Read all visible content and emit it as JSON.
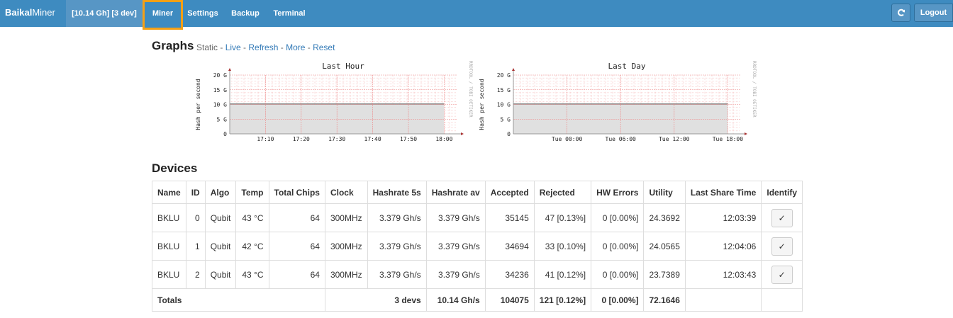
{
  "navbar": {
    "brand_bold": "Baikal",
    "brand_light": "Miner",
    "status": "[10.14 Gh] [3 dev]",
    "tabs": [
      "Miner",
      "Settings",
      "Backup",
      "Terminal"
    ],
    "active_tab": "Miner",
    "refresh_icon": "refresh-icon",
    "logout_label": "Logout"
  },
  "graphs_section": {
    "heading": "Graphs",
    "links": {
      "static": "Static",
      "live": "Live",
      "refresh": "Refresh",
      "more": "More",
      "reset": "Reset"
    }
  },
  "chart_data": [
    {
      "type": "area",
      "title": "Last Hour",
      "ylabel": "Hash per second",
      "side_label": "RRDTOOL / TOBI OETIKER",
      "y_ticks": [
        "0",
        "5 G",
        "10 G",
        "15 G",
        "20 G"
      ],
      "ylim": [
        0,
        20
      ],
      "x_ticks": [
        "17:10",
        "17:20",
        "17:30",
        "17:40",
        "17:50",
        "18:00"
      ],
      "x": [
        "17:00",
        "18:00"
      ],
      "values": [
        10.14,
        10.14
      ],
      "colors": {
        "fill": "#e0e0e0",
        "line": "#444444",
        "grid": "#f4b4b4",
        "axis": "#999999"
      }
    },
    {
      "type": "area",
      "title": "Last Day",
      "ylabel": "Hash per second",
      "side_label": "RRDTOOL / TOBI OETIKER",
      "y_ticks": [
        "0",
        "5 G",
        "10 G",
        "15 G",
        "20 G"
      ],
      "ylim": [
        0,
        20
      ],
      "x_ticks": [
        "Tue 00:00",
        "Tue 06:00",
        "Tue 12:00",
        "Tue 18:00"
      ],
      "x": [
        "Mon 18:00",
        "Tue 18:00"
      ],
      "values": [
        10.14,
        10.14
      ],
      "colors": {
        "fill": "#e0e0e0",
        "line": "#444444",
        "grid": "#f4b4b4",
        "axis": "#999999"
      }
    }
  ],
  "devices_section": {
    "heading": "Devices",
    "columns": [
      "Name",
      "ID",
      "Algo",
      "Temp",
      "Total Chips",
      "Clock",
      "Hashrate 5s",
      "Hashrate av",
      "Accepted",
      "Rejected",
      "HW Errors",
      "Utility",
      "Last Share Time",
      "Identify"
    ],
    "rows": [
      [
        "BKLU",
        "0",
        "Qubit",
        "43 °C",
        "64",
        "300MHz",
        "3.379 Gh/s",
        "3.379 Gh/s",
        "35145",
        "47 [0.13%]",
        "0 [0.00%]",
        "24.3692",
        "12:03:39"
      ],
      [
        "BKLU",
        "1",
        "Qubit",
        "42 °C",
        "64",
        "300MHz",
        "3.379 Gh/s",
        "3.379 Gh/s",
        "34694",
        "33 [0.10%]",
        "0 [0.00%]",
        "24.0565",
        "12:04:06"
      ],
      [
        "BKLU",
        "2",
        "Qubit",
        "43 °C",
        "64",
        "300MHz",
        "3.379 Gh/s",
        "3.379 Gh/s",
        "34236",
        "41 [0.12%]",
        "0 [0.00%]",
        "23.7389",
        "12:03:43"
      ]
    ],
    "identify_icon": "checkmark-icon",
    "identify_glyph": "✓",
    "totals": {
      "label": "Totals",
      "devs": "3 devs",
      "hashrate_5s": "10.14 Gh/s",
      "hashrate_av": "10.14 Gh/s",
      "accepted": "104075",
      "rejected": "121 [0.12%]",
      "hw_errors": "0 [0.00%]",
      "utility": "72.1646"
    }
  }
}
